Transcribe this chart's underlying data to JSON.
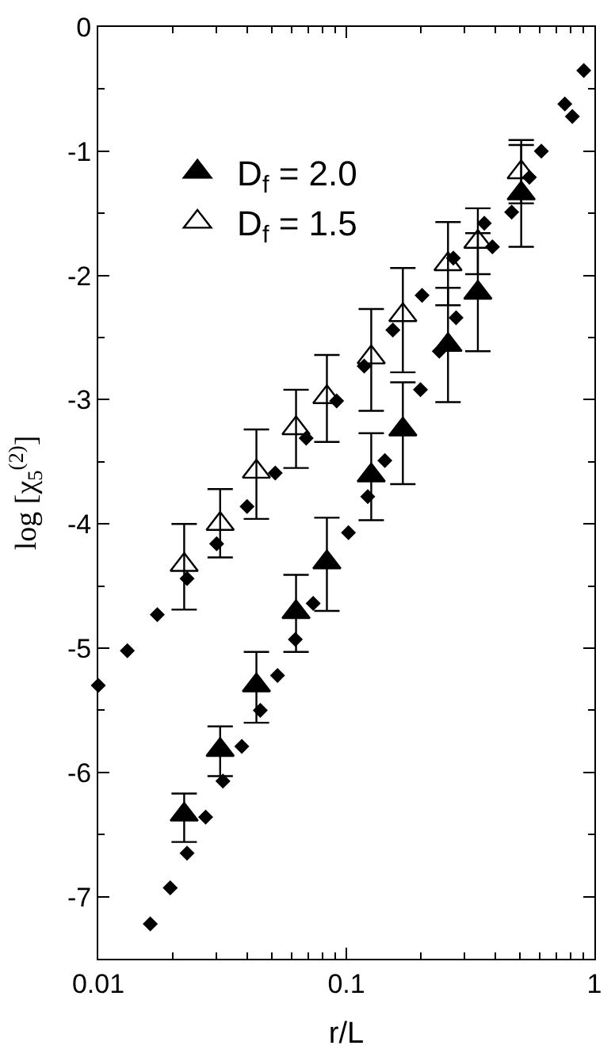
{
  "chart_data": {
    "type": "scatter",
    "xlabel": "r/L",
    "ylabel": "log [χ$_{5}$$^{(2)}$]",
    "log": "x",
    "legend": "top left",
    "xlim": [
      0.01,
      1
    ],
    "xticks": [
      0.01,
      0.1,
      1
    ],
    "ylim": [
      -7.5,
      0
    ],
    "yticks": [
      -7,
      -6,
      -5,
      -4,
      -3,
      -2,
      -1,
      0
    ],
    "series": [
      {
        "name": "D$_{f}$ = 2.0",
        "color": "#000000",
        "marker": "triangle",
        "x": [
          0.0222,
          0.031,
          0.0434,
          0.0627,
          0.0835,
          0.126,
          0.169,
          0.257,
          0.339,
          0.507
        ],
        "values": [
          -6.34,
          -5.82,
          -5.3,
          -4.71,
          -4.31,
          -3.61,
          -3.24,
          -2.56,
          -2.14,
          -1.34
        ],
        "errors": [
          [
            -6.56,
            -6.17
          ],
          [
            -6.03,
            -5.63
          ],
          [
            -5.6,
            -5.03
          ],
          [
            -5.03,
            -4.41
          ],
          [
            -4.7,
            -3.95
          ],
          [
            -3.97,
            -3.27
          ],
          [
            -3.68,
            -2.86
          ],
          [
            -3.02,
            -2.1
          ],
          [
            -2.61,
            -1.66
          ],
          [
            -1.77,
            -0.95
          ]
        ]
      },
      {
        "name": "D$_{f}$ = 1.5",
        "color": "#000000",
        "marker": "triangle-open",
        "x": [
          0.0222,
          0.031,
          0.0434,
          0.0627,
          0.0835,
          0.126,
          0.169,
          0.257,
          0.339,
          0.507
        ],
        "values": [
          -4.33,
          -4.0,
          -3.58,
          -3.23,
          -2.98,
          -2.66,
          -2.32,
          -1.91,
          -1.73,
          -1.17
        ],
        "errors": [
          [
            -4.69,
            -4.0
          ],
          [
            -4.27,
            -3.72
          ],
          [
            -3.96,
            -3.24
          ],
          [
            -3.55,
            -2.92
          ],
          [
            -3.34,
            -2.64
          ],
          [
            -3.09,
            -2.27
          ],
          [
            -2.78,
            -1.94
          ],
          [
            -2.24,
            -1.57
          ],
          [
            -1.99,
            -1.46
          ],
          [
            -1.42,
            -0.91
          ]
        ]
      },
      {
        "color": "#000000",
        "marker": "diamond",
        "x": [
          0.0162,
          0.0195,
          0.0228,
          0.0271,
          0.0318,
          0.0379,
          0.045,
          0.0528,
          0.0623,
          0.0735,
          0.102,
          0.122,
          0.143,
          0.199,
          0.237,
          0.277,
          0.388,
          0.464,
          0.547,
          0.611,
          0.76,
          0.815,
          0.906
        ],
        "values": [
          -7.22,
          -6.93,
          -6.65,
          -6.36,
          -6.07,
          -5.79,
          -5.5,
          -5.22,
          -4.93,
          -4.64,
          -4.07,
          -3.78,
          -3.49,
          -2.92,
          -2.61,
          -2.34,
          -1.77,
          -1.49,
          -1.21,
          -1.0,
          -0.62,
          -0.72,
          -0.35
        ]
      },
      {
        "color": "#000000",
        "marker": "diamond",
        "x": [
          0.01,
          0.0131,
          0.0173,
          0.0228,
          0.03,
          0.0398,
          0.0517,
          0.0689,
          0.0914,
          0.118,
          0.154,
          0.202,
          0.27,
          0.36
        ],
        "values": [
          -5.3,
          -5.02,
          -4.73,
          -4.44,
          -4.16,
          -3.86,
          -3.59,
          -3.31,
          -3.01,
          -2.73,
          -2.44,
          -2.16,
          -1.86,
          -1.58
        ]
      }
    ]
  }
}
